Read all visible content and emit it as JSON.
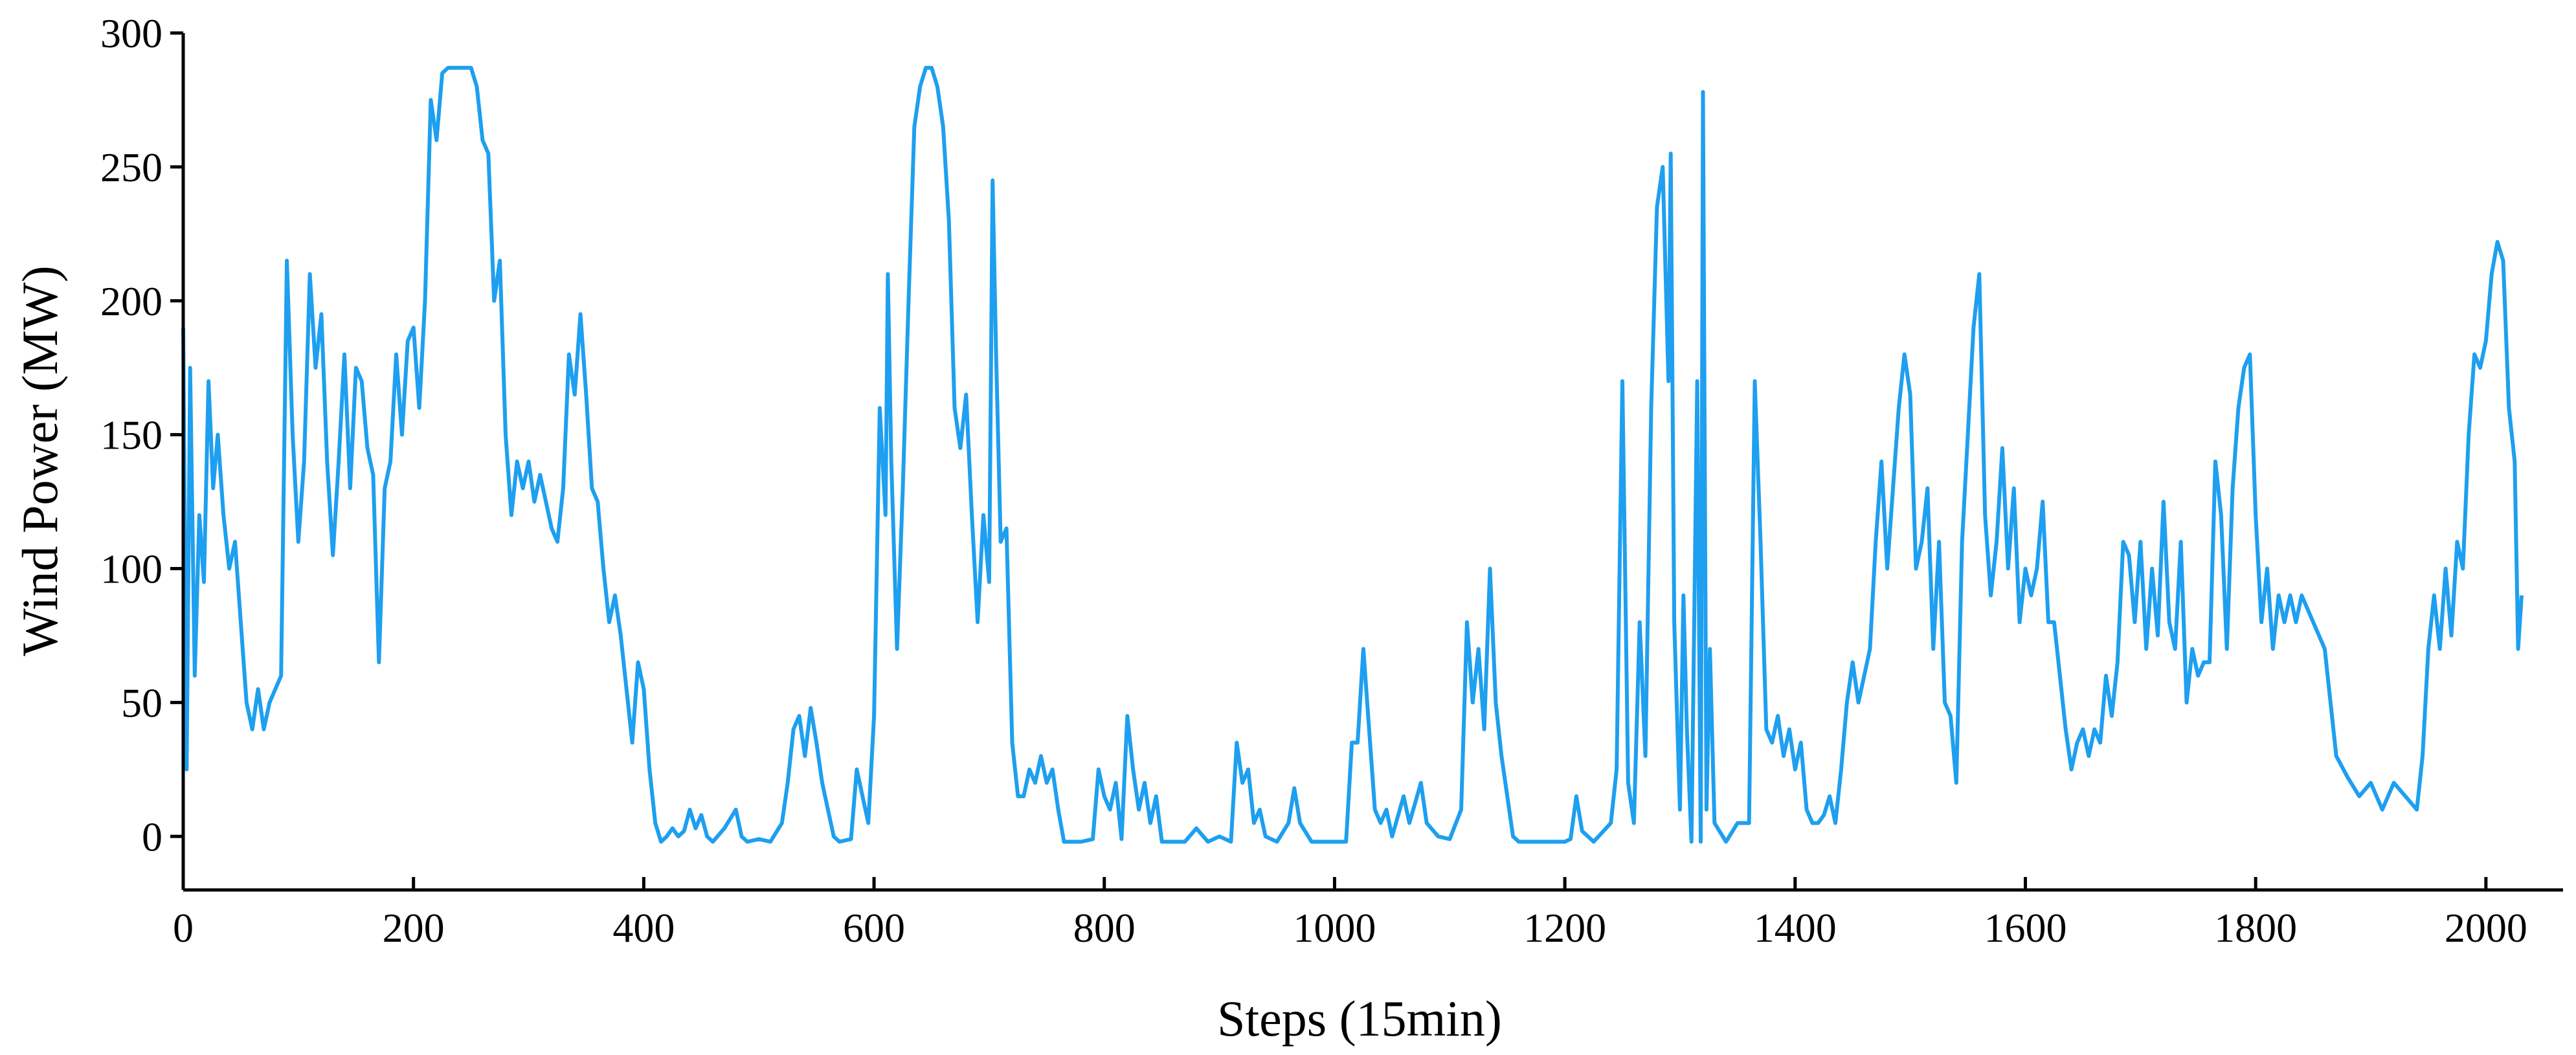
{
  "chart_data": {
    "type": "line",
    "xlabel": "Steps (15min)",
    "ylabel": "Wind Power (MW)",
    "xlim": [
      0,
      2067
    ],
    "ylim": [
      -20,
      300
    ],
    "xticks": [
      0,
      200,
      400,
      600,
      800,
      1000,
      1200,
      1400,
      1600,
      1800,
      2000
    ],
    "yticks": [
      0,
      50,
      100,
      150,
      200,
      250,
      300
    ],
    "series": [
      {
        "color": "#1e9fef",
        "x": [
          0,
          3,
          6,
          10,
          14,
          18,
          22,
          26,
          30,
          35,
          40,
          45,
          50,
          55,
          60,
          65,
          70,
          75,
          80,
          85,
          90,
          95,
          100,
          105,
          110,
          115,
          120,
          125,
          130,
          135,
          140,
          145,
          150,
          155,
          160,
          165,
          170,
          175,
          180,
          185,
          190,
          195,
          200,
          205,
          210,
          215,
          220,
          225,
          230,
          240,
          250,
          255,
          260,
          265,
          270,
          275,
          280,
          285,
          290,
          295,
          300,
          305,
          310,
          315,
          320,
          325,
          330,
          335,
          340,
          345,
          350,
          355,
          360,
          365,
          370,
          375,
          380,
          385,
          390,
          395,
          400,
          405,
          410,
          415,
          420,
          425,
          430,
          435,
          440,
          445,
          450,
          455,
          460,
          470,
          480,
          485,
          490,
          500,
          510,
          520,
          525,
          530,
          535,
          540,
          545,
          550,
          555,
          560,
          565,
          570,
          580,
          585,
          590,
          595,
          600,
          605,
          610,
          612,
          615,
          620,
          625,
          630,
          635,
          640,
          645,
          650,
          655,
          660,
          665,
          670,
          675,
          680,
          685,
          690,
          695,
          700,
          703,
          706,
          710,
          715,
          720,
          725,
          730,
          735,
          740,
          745,
          750,
          755,
          760,
          765,
          780,
          790,
          795,
          800,
          805,
          810,
          815,
          820,
          825,
          830,
          835,
          840,
          845,
          850,
          870,
          880,
          890,
          900,
          910,
          915,
          920,
          925,
          930,
          935,
          940,
          950,
          960,
          965,
          970,
          980,
          1000,
          1010,
          1015,
          1020,
          1025,
          1030,
          1035,
          1040,
          1045,
          1050,
          1060,
          1065,
          1075,
          1080,
          1090,
          1100,
          1110,
          1115,
          1120,
          1125,
          1130,
          1135,
          1140,
          1145,
          1150,
          1155,
          1160,
          1200,
          1205,
          1210,
          1215,
          1225,
          1240,
          1245,
          1250,
          1255,
          1260,
          1265,
          1270,
          1275,
          1280,
          1285,
          1290,
          1292,
          1295,
          1300,
          1303,
          1306,
          1310,
          1315,
          1318,
          1320,
          1323,
          1326,
          1330,
          1340,
          1350,
          1360,
          1365,
          1370,
          1375,
          1380,
          1385,
          1390,
          1395,
          1400,
          1405,
          1410,
          1415,
          1420,
          1425,
          1430,
          1435,
          1440,
          1445,
          1450,
          1455,
          1460,
          1465,
          1470,
          1475,
          1480,
          1485,
          1490,
          1495,
          1500,
          1505,
          1510,
          1515,
          1520,
          1525,
          1530,
          1535,
          1540,
          1545,
          1550,
          1555,
          1560,
          1565,
          1570,
          1575,
          1580,
          1585,
          1590,
          1595,
          1600,
          1605,
          1610,
          1615,
          1620,
          1625,
          1630,
          1635,
          1640,
          1645,
          1650,
          1655,
          1660,
          1665,
          1670,
          1675,
          1680,
          1685,
          1690,
          1695,
          1700,
          1705,
          1710,
          1715,
          1720,
          1725,
          1730,
          1735,
          1740,
          1745,
          1750,
          1755,
          1760,
          1765,
          1770,
          1775,
          1780,
          1785,
          1790,
          1795,
          1800,
          1805,
          1810,
          1815,
          1820,
          1825,
          1830,
          1835,
          1840,
          1850,
          1860,
          1870,
          1880,
          1890,
          1900,
          1910,
          1920,
          1930,
          1940,
          1945,
          1950,
          1955,
          1960,
          1965,
          1970,
          1975,
          1980,
          1985,
          1990,
          1995,
          2000,
          2005,
          2010,
          2015,
          2020,
          2025,
          2028,
          2031
        ],
        "values": [
          190,
          25,
          175,
          60,
          120,
          95,
          170,
          130,
          150,
          120,
          100,
          110,
          80,
          50,
          40,
          55,
          40,
          50,
          55,
          60,
          215,
          150,
          110,
          140,
          210,
          175,
          195,
          140,
          105,
          140,
          180,
          130,
          175,
          170,
          145,
          135,
          65,
          130,
          140,
          180,
          150,
          185,
          190,
          160,
          200,
          275,
          260,
          285,
          287,
          287,
          287,
          280,
          260,
          255,
          200,
          215,
          150,
          120,
          140,
          130,
          140,
          125,
          135,
          125,
          115,
          110,
          130,
          180,
          165,
          195,
          165,
          130,
          125,
          100,
          80,
          90,
          75,
          55,
          35,
          65,
          55,
          25,
          5,
          -2,
          0,
          3,
          0,
          2,
          10,
          3,
          8,
          0,
          -2,
          3,
          10,
          0,
          -2,
          -1,
          -2,
          5,
          20,
          40,
          45,
          30,
          48,
          35,
          20,
          10,
          0,
          -2,
          -1,
          25,
          15,
          5,
          45,
          160,
          120,
          210,
          140,
          70,
          130,
          200,
          265,
          280,
          287,
          287,
          280,
          265,
          230,
          160,
          145,
          165,
          120,
          80,
          120,
          95,
          245,
          180,
          110,
          115,
          35,
          15,
          15,
          25,
          20,
          30,
          20,
          25,
          10,
          -2,
          -2,
          -1,
          25,
          15,
          10,
          20,
          -1,
          45,
          25,
          10,
          20,
          5,
          15,
          -2,
          -2,
          3,
          -2,
          0,
          -2,
          35,
          20,
          25,
          5,
          10,
          0,
          -2,
          5,
          18,
          5,
          -2,
          -2,
          -2,
          35,
          35,
          70,
          40,
          10,
          5,
          10,
          0,
          15,
          5,
          20,
          5,
          0,
          -1,
          10,
          80,
          50,
          70,
          40,
          100,
          50,
          30,
          15,
          0,
          -2,
          -2,
          -1,
          15,
          2,
          -2,
          5,
          25,
          170,
          20,
          5,
          80,
          30,
          160,
          235,
          250,
          170,
          255,
          80,
          10,
          90,
          40,
          -2,
          170,
          -2,
          278,
          10,
          70,
          5,
          -2,
          5,
          5,
          170,
          110,
          40,
          35,
          45,
          30,
          40,
          25,
          35,
          10,
          5,
          5,
          8,
          15,
          5,
          25,
          50,
          65,
          50,
          60,
          70,
          110,
          140,
          100,
          130,
          160,
          180,
          165,
          100,
          110,
          130,
          70,
          110,
          50,
          45,
          20,
          110,
          150,
          190,
          210,
          120,
          90,
          110,
          145,
          100,
          130,
          80,
          100,
          90,
          100,
          125,
          80,
          80,
          60,
          40,
          25,
          35,
          40,
          30,
          40,
          35,
          60,
          45,
          65,
          110,
          105,
          80,
          110,
          70,
          100,
          75,
          125,
          80,
          70,
          110,
          50,
          70,
          60,
          65,
          65,
          140,
          120,
          70,
          130,
          160,
          175,
          180,
          120,
          80,
          100,
          70,
          90,
          80,
          90,
          80,
          90,
          80,
          70,
          30,
          22,
          15,
          20,
          10,
          20,
          15,
          10,
          30,
          70,
          90,
          70,
          100,
          75,
          110,
          100,
          150,
          180,
          175,
          185,
          210,
          222,
          215,
          160,
          140,
          70,
          90
        ]
      }
    ]
  }
}
